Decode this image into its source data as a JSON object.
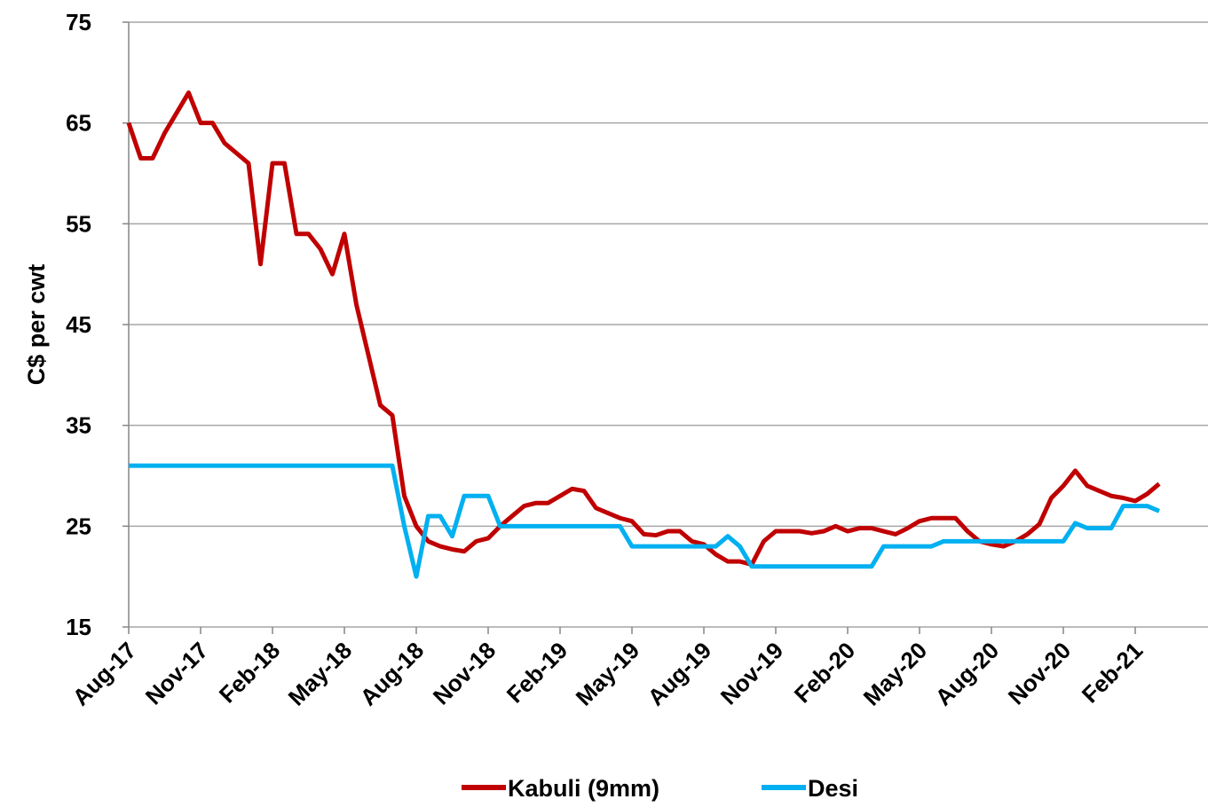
{
  "chart_data": {
    "type": "line",
    "y_label": "C$ per cwt",
    "categories": [
      "Aug-17",
      null,
      null,
      null,
      null,
      null,
      "Nov-17",
      null,
      null,
      null,
      null,
      null,
      "Feb-18",
      null,
      null,
      null,
      null,
      null,
      "May-18",
      null,
      null,
      null,
      null,
      null,
      "Aug-18",
      null,
      null,
      null,
      null,
      null,
      "Nov-18",
      null,
      null,
      null,
      null,
      null,
      "Feb-19",
      null,
      null,
      null,
      null,
      null,
      "May-19",
      null,
      null,
      null,
      null,
      null,
      "Aug-19",
      null,
      null,
      null,
      null,
      null,
      "Nov-19",
      null,
      null,
      null,
      null,
      null,
      "Feb-20",
      null,
      null,
      null,
      null,
      null,
      "May-20",
      null,
      null,
      null,
      null,
      null,
      "Aug-20",
      null,
      null,
      null,
      null,
      null,
      "Nov-20",
      null,
      null,
      null,
      null,
      null,
      "Feb-21",
      null,
      null
    ],
    "series": [
      {
        "name": "Kabuli (9mm)",
        "color": "#c00000",
        "values": [
          65,
          61.5,
          61.5,
          64,
          66,
          68,
          65,
          65,
          63,
          62,
          61,
          51,
          61,
          61,
          54,
          54,
          52.5,
          50,
          54,
          47,
          42,
          37,
          36,
          28,
          25,
          23.5,
          23,
          22.7,
          22.5,
          23.5,
          23.8,
          25,
          26,
          27,
          27.3,
          27.3,
          28,
          28.7,
          28.5,
          26.8,
          26.3,
          25.8,
          25.5,
          24.2,
          24.1,
          24.5,
          24.5,
          23.5,
          23.2,
          22.2,
          21.5,
          21.5,
          21.2,
          23.5,
          24.5,
          24.5,
          24.5,
          24.3,
          24.5,
          25,
          24.5,
          24.8,
          24.8,
          24.5,
          24.2,
          24.8,
          25.5,
          25.8,
          25.8,
          25.8,
          24.5,
          23.5,
          23.2,
          23,
          23.5,
          24.2,
          25.2,
          27.8,
          29,
          30.5,
          29,
          28.5,
          28,
          27.8,
          27.5,
          28.2,
          29.2
        ]
      },
      {
        "name": "Desi",
        "color": "#00b0f0",
        "values": [
          31,
          31,
          31,
          31,
          31,
          31,
          31,
          31,
          31,
          31,
          31,
          31,
          31,
          31,
          31,
          31,
          31,
          31,
          31,
          31,
          31,
          31,
          31,
          25,
          20,
          26,
          26,
          24,
          28,
          28,
          28,
          25,
          25,
          25,
          25,
          25,
          25,
          25,
          25,
          25,
          25,
          25,
          23,
          23,
          23,
          23,
          23,
          23,
          23,
          23,
          24,
          23,
          21,
          21,
          21,
          21,
          21,
          21,
          21,
          21,
          21,
          21,
          21,
          23,
          23,
          23,
          23,
          23,
          23.5,
          23.5,
          23.5,
          23.5,
          23.5,
          23.5,
          23.5,
          23.5,
          23.5,
          23.5,
          23.5,
          25.3,
          24.8,
          24.8,
          24.8,
          27,
          27,
          27,
          26.5
        ]
      }
    ],
    "ylim": [
      15,
      75
    ],
    "yticks": [
      15,
      25,
      35,
      45,
      55,
      65,
      75
    ],
    "grid": true,
    "legend": "bottom"
  }
}
